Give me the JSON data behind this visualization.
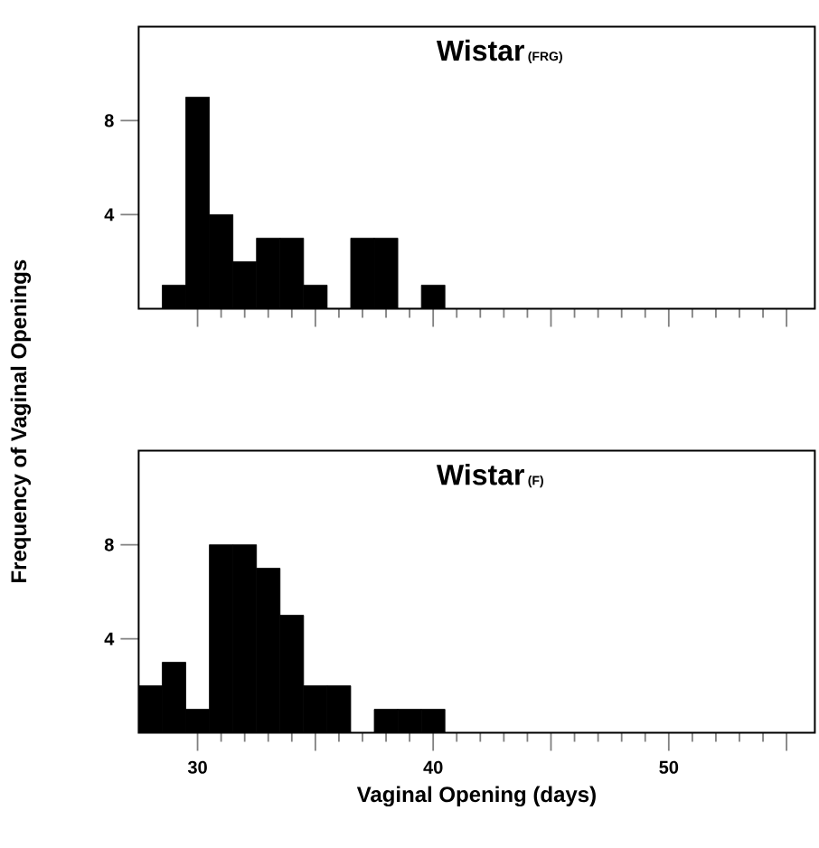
{
  "chart_data": [
    {
      "type": "histogram",
      "title": "Wistar",
      "subtitle": "(FRG)",
      "ylabel": "Frequency of Vaginal Openings",
      "color": "#000000",
      "bins": [
        28.5,
        29.5,
        30.5,
        31.5,
        32.5,
        33.5,
        34.5,
        35.5,
        36.5,
        37.5,
        38.5,
        39.5,
        40.5
      ],
      "values": [
        1,
        9,
        4,
        2,
        3,
        3,
        1,
        0,
        3,
        3,
        0,
        1
      ],
      "xlim": [
        27.5,
        56.2
      ],
      "ylim": [
        0,
        12
      ],
      "yticks": [
        4,
        8
      ],
      "xticks": [
        {
          "value": 30,
          "label": null
        },
        {
          "value": 35,
          "label": null
        },
        {
          "value": 40,
          "label": null
        },
        {
          "value": 45,
          "label": null
        },
        {
          "value": 50,
          "label": null
        },
        {
          "value": 55,
          "label": null
        }
      ],
      "tick_labels": "y"
    },
    {
      "type": "histogram",
      "title": "Wistar",
      "subtitle": "(F)",
      "xlabel": "Vaginal Opening (days)",
      "color": "#000000",
      "bins": [
        27.5,
        28.5,
        29.5,
        30.5,
        31.5,
        32.5,
        33.5,
        34.5,
        35.5,
        36.5,
        37.5,
        38.5,
        39.5,
        40.5
      ],
      "values": [
        2,
        3,
        1,
        8,
        8,
        7,
        5,
        2,
        2,
        0,
        1,
        1,
        1
      ],
      "xlim": [
        27.5,
        56.2
      ],
      "ylim": [
        0,
        12
      ],
      "yticks": [
        4,
        8
      ],
      "xticks": [
        30,
        {
          "value": 35,
          "label": null
        },
        40,
        {
          "value": 45,
          "label": null
        },
        50,
        {
          "value": 55,
          "label": null
        }
      ]
    }
  ]
}
